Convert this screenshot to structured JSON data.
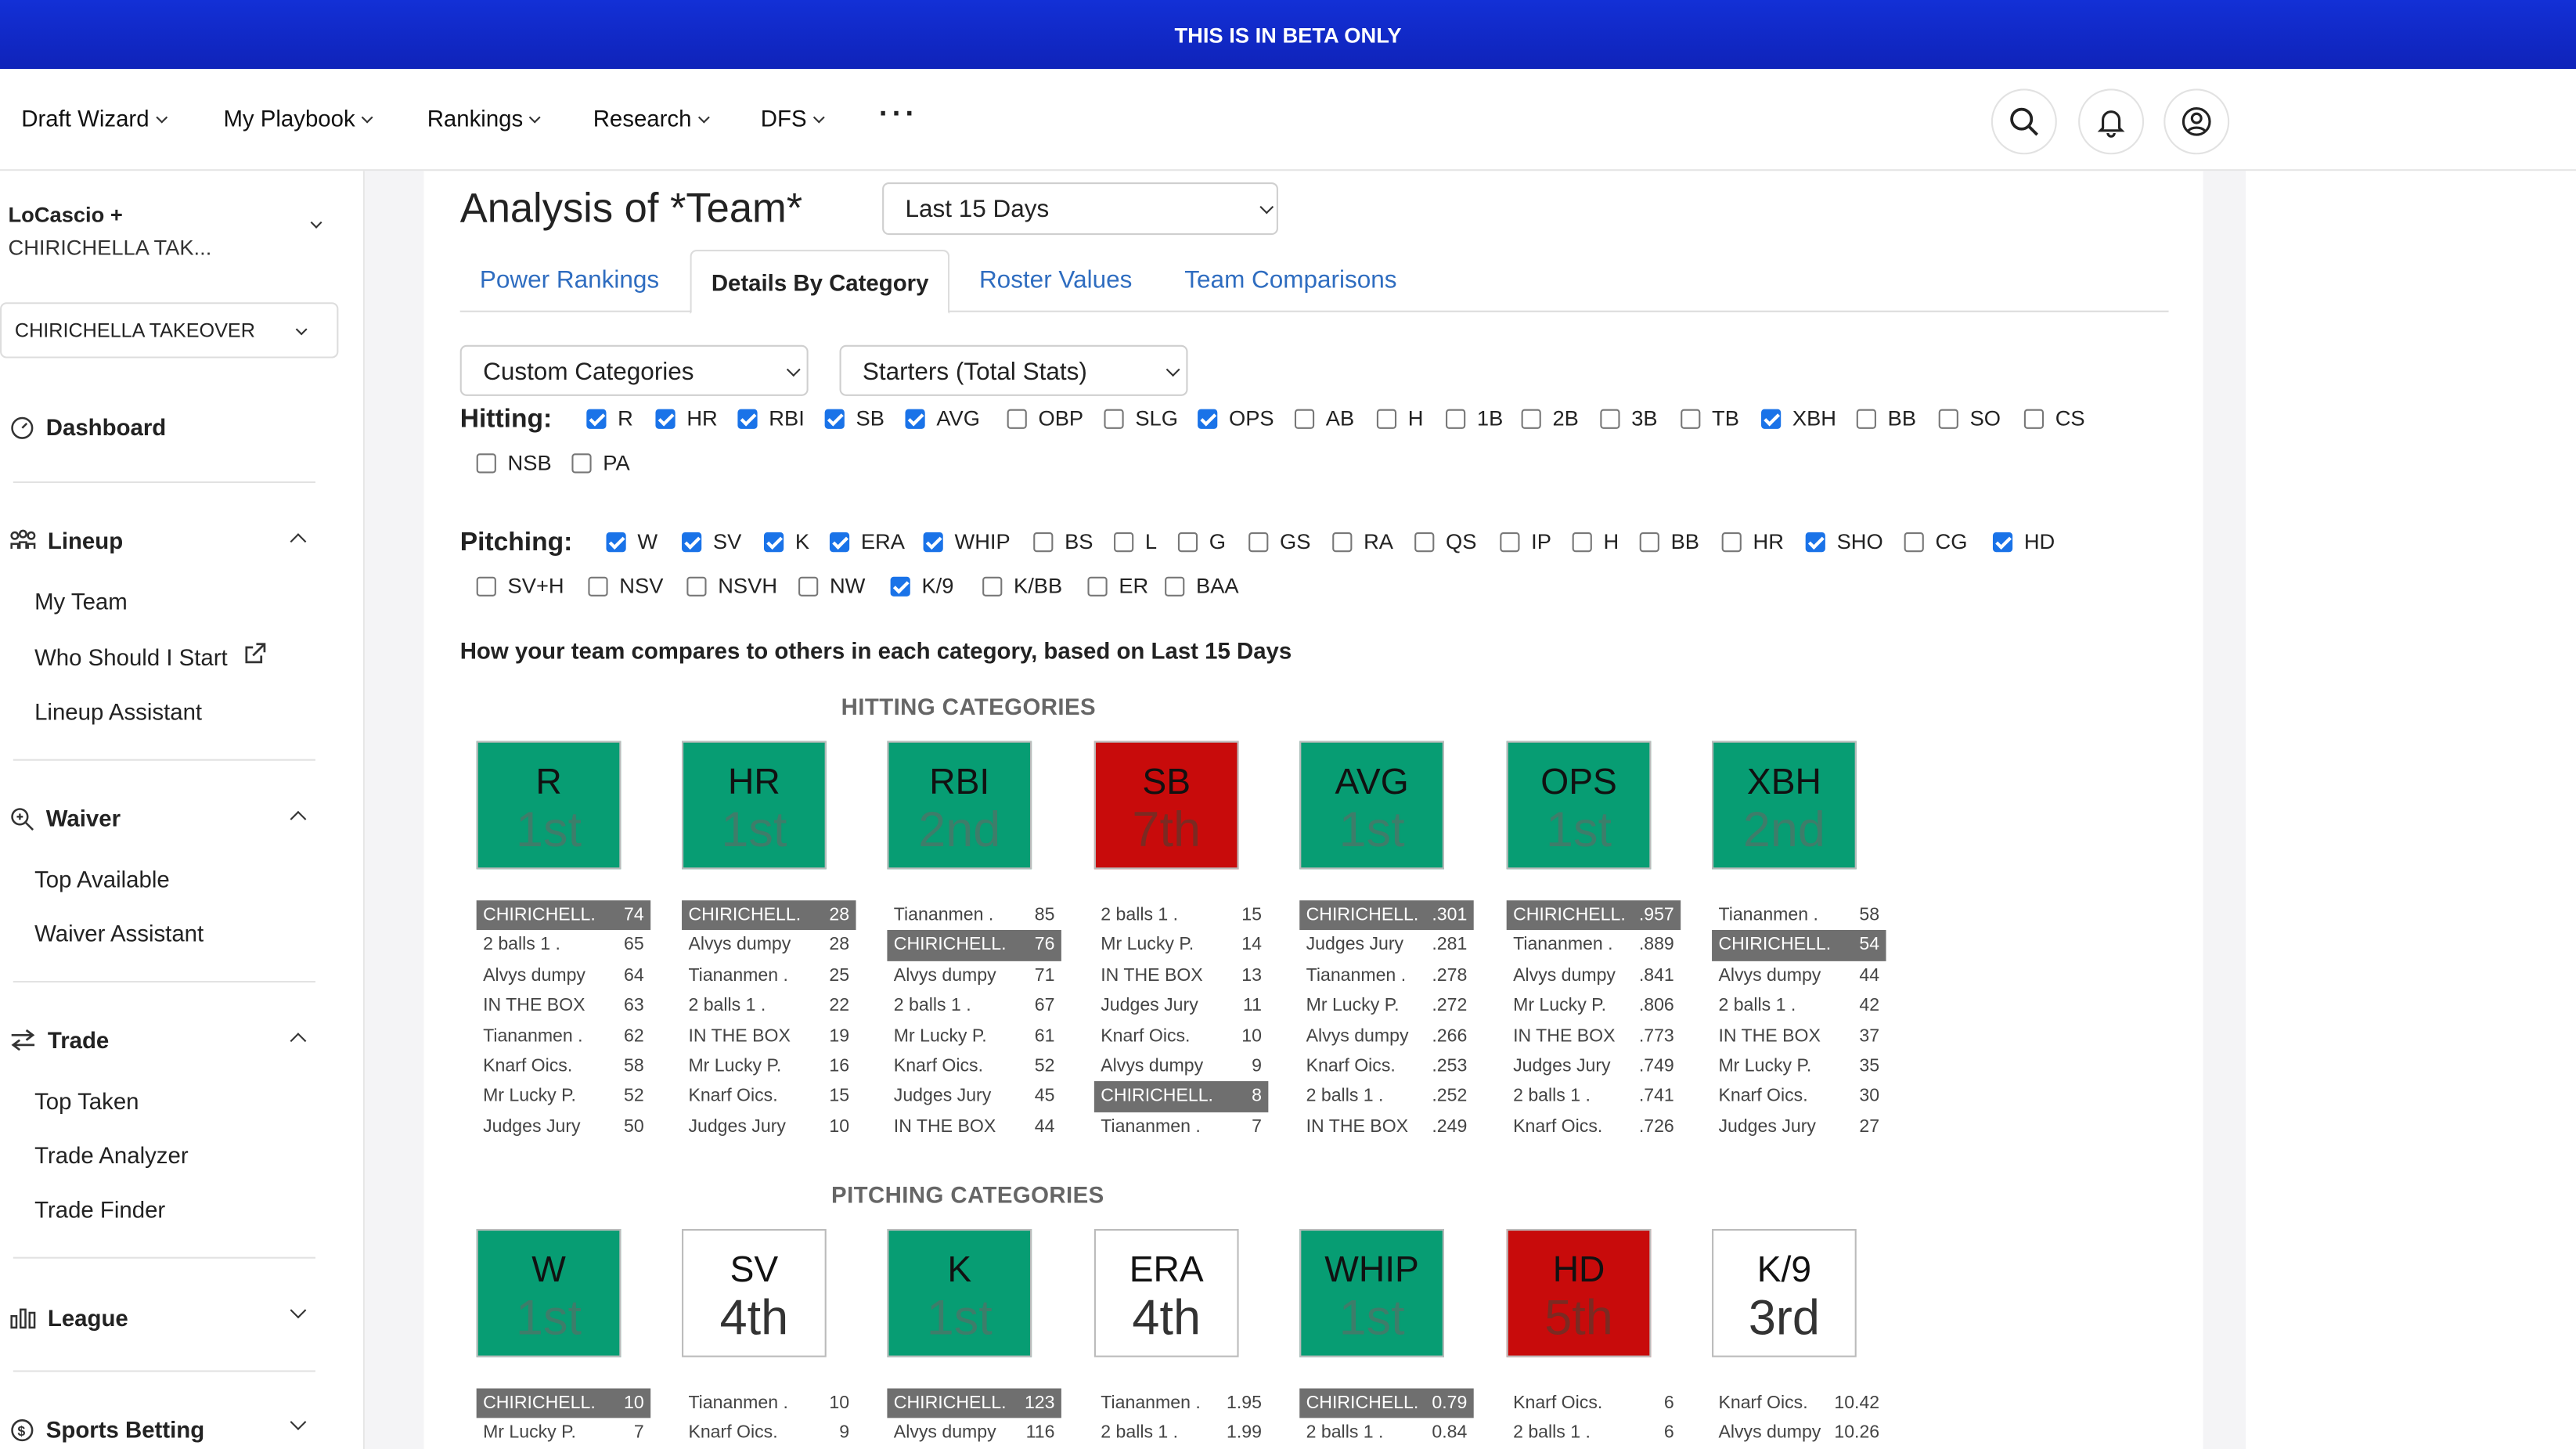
{
  "banner": "THIS IS IN BETA ONLY",
  "nav": [
    "Draft Wizard",
    "My Playbook",
    "Rankings",
    "Research",
    "DFS"
  ],
  "sidebar": {
    "league_line1": "LoCascio +",
    "league_line2": "CHIRICHELLA TAK...",
    "team": "CHIRICHELLA TAKEOVER",
    "dashboard": "Dashboard",
    "lineup": "Lineup",
    "lineup_items": [
      "My Team",
      "Who Should I Start",
      "Lineup Assistant"
    ],
    "waiver": "Waiver",
    "waiver_items": [
      "Top Available",
      "Waiver Assistant"
    ],
    "trade": "Trade",
    "trade_items": [
      "Top Taken",
      "Trade Analyzer",
      "Trade Finder"
    ],
    "league": "League",
    "betting": "Sports Betting"
  },
  "main": {
    "title": "Analysis of *Team*",
    "period": "Last 15 Days",
    "tabs": [
      "Power Rankings",
      "Details By Category",
      "Roster Values",
      "Team Comparisons"
    ],
    "active_tab": "Details By Category",
    "category_select": "Custom Categories",
    "stats_select": "Starters (Total Stats)",
    "hitting_label": "Hitting:",
    "pitching_label": "Pitching:",
    "summary": "How your team compares to others in each category, based on Last 15 Days",
    "hitting_heading": "HITTING CATEGORIES",
    "pitching_heading": "PITCHING CATEGORIES"
  },
  "hitting_checks": [
    {
      "l": "R",
      "on": true
    },
    {
      "l": "HR",
      "on": true
    },
    {
      "l": "RBI",
      "on": true
    },
    {
      "l": "SB",
      "on": true
    },
    {
      "l": "AVG",
      "on": true
    },
    {
      "l": "OBP",
      "on": false
    },
    {
      "l": "SLG",
      "on": false
    },
    {
      "l": "OPS",
      "on": true
    },
    {
      "l": "AB",
      "on": false
    },
    {
      "l": "H",
      "on": false
    },
    {
      "l": "1B",
      "on": false
    },
    {
      "l": "2B",
      "on": false
    },
    {
      "l": "3B",
      "on": false
    },
    {
      "l": "TB",
      "on": false
    },
    {
      "l": "XBH",
      "on": true
    },
    {
      "l": "BB",
      "on": false
    },
    {
      "l": "SO",
      "on": false
    },
    {
      "l": "CS",
      "on": false
    },
    {
      "l": "NSB",
      "on": false
    },
    {
      "l": "PA",
      "on": false
    }
  ],
  "pitching_checks": [
    {
      "l": "W",
      "on": true
    },
    {
      "l": "SV",
      "on": true
    },
    {
      "l": "K",
      "on": true
    },
    {
      "l": "ERA",
      "on": true
    },
    {
      "l": "WHIP",
      "on": true
    },
    {
      "l": "BS",
      "on": false
    },
    {
      "l": "L",
      "on": false
    },
    {
      "l": "G",
      "on": false
    },
    {
      "l": "GS",
      "on": false
    },
    {
      "l": "RA",
      "on": false
    },
    {
      "l": "QS",
      "on": false
    },
    {
      "l": "IP",
      "on": false
    },
    {
      "l": "H",
      "on": false
    },
    {
      "l": "BB",
      "on": false
    },
    {
      "l": "HR",
      "on": false
    },
    {
      "l": "SHO",
      "on": true
    },
    {
      "l": "CG",
      "on": false
    },
    {
      "l": "HD",
      "on": true
    },
    {
      "l": "SV+H",
      "on": false
    },
    {
      "l": "NSV",
      "on": false
    },
    {
      "l": "NSVH",
      "on": false
    },
    {
      "l": "NW",
      "on": false
    },
    {
      "l": "K/9",
      "on": true
    },
    {
      "l": "K/BB",
      "on": false
    },
    {
      "l": "ER",
      "on": false
    },
    {
      "l": "BAA",
      "on": false
    }
  ],
  "hitting_cats": [
    {
      "name": "R",
      "rank": "1st",
      "color": "green",
      "rows": [
        [
          "CHIRICHELL.",
          "74",
          true
        ],
        [
          "2 balls 1 .",
          "65"
        ],
        [
          "Alvys dumpy",
          "64"
        ],
        [
          "IN THE BOX",
          "63"
        ],
        [
          "Tiananmen .",
          "62"
        ],
        [
          "Knarf Oics.",
          "58"
        ],
        [
          "Mr Lucky P.",
          "52"
        ],
        [
          "Judges Jury",
          "50"
        ]
      ]
    },
    {
      "name": "HR",
      "rank": "1st",
      "color": "green",
      "rows": [
        [
          "CHIRICHELL.",
          "28",
          true
        ],
        [
          "Alvys dumpy",
          "28"
        ],
        [
          "Tiananmen .",
          "25"
        ],
        [
          "2 balls 1 .",
          "22"
        ],
        [
          "IN THE BOX",
          "19"
        ],
        [
          "Mr Lucky P.",
          "16"
        ],
        [
          "Knarf Oics.",
          "15"
        ],
        [
          "Judges Jury",
          "10"
        ]
      ]
    },
    {
      "name": "RBI",
      "rank": "2nd",
      "color": "green",
      "rows": [
        [
          "Tiananmen .",
          "85"
        ],
        [
          "CHIRICHELL.",
          "76",
          true
        ],
        [
          "Alvys dumpy",
          "71"
        ],
        [
          "2 balls 1 .",
          "67"
        ],
        [
          "Mr Lucky P.",
          "61"
        ],
        [
          "Knarf Oics.",
          "52"
        ],
        [
          "Judges Jury",
          "45"
        ],
        [
          "IN THE BOX",
          "44"
        ]
      ]
    },
    {
      "name": "SB",
      "rank": "7th",
      "color": "red",
      "rows": [
        [
          "2 balls 1 .",
          "15"
        ],
        [
          "Mr Lucky P.",
          "14"
        ],
        [
          "IN THE BOX",
          "13"
        ],
        [
          "Judges Jury",
          "11"
        ],
        [
          "Knarf Oics.",
          "10"
        ],
        [
          "Alvys dumpy",
          "9"
        ],
        [
          "CHIRICHELL.",
          "8",
          true
        ],
        [
          "Tiananmen .",
          "7"
        ]
      ]
    },
    {
      "name": "AVG",
      "rank": "1st",
      "color": "green",
      "rows": [
        [
          "CHIRICHELL.",
          ".301",
          true
        ],
        [
          "Judges Jury",
          ".281"
        ],
        [
          "Tiananmen .",
          ".278"
        ],
        [
          "Mr Lucky P.",
          ".272"
        ],
        [
          "Alvys dumpy",
          ".266"
        ],
        [
          "Knarf Oics.",
          ".253"
        ],
        [
          "2 balls 1 .",
          ".252"
        ],
        [
          "IN THE BOX",
          ".249"
        ]
      ]
    },
    {
      "name": "OPS",
      "rank": "1st",
      "color": "green",
      "rows": [
        [
          "CHIRICHELL.",
          ".957",
          true
        ],
        [
          "Tiananmen .",
          ".889"
        ],
        [
          "Alvys dumpy",
          ".841"
        ],
        [
          "Mr Lucky P.",
          ".806"
        ],
        [
          "IN THE BOX",
          ".773"
        ],
        [
          "Judges Jury",
          ".749"
        ],
        [
          "2 balls 1 .",
          ".741"
        ],
        [
          "Knarf Oics.",
          ".726"
        ]
      ]
    },
    {
      "name": "XBH",
      "rank": "2nd",
      "color": "green",
      "rows": [
        [
          "Tiananmen .",
          "58"
        ],
        [
          "CHIRICHELL.",
          "54",
          true
        ],
        [
          "Alvys dumpy",
          "44"
        ],
        [
          "2 balls 1 .",
          "42"
        ],
        [
          "IN THE BOX",
          "37"
        ],
        [
          "Mr Lucky P.",
          "35"
        ],
        [
          "Knarf Oics.",
          "30"
        ],
        [
          "Judges Jury",
          "27"
        ]
      ]
    }
  ],
  "pitching_cats": [
    {
      "name": "W",
      "rank": "1st",
      "color": "green",
      "rows": [
        [
          "CHIRICHELL.",
          "10",
          true
        ],
        [
          "Mr Lucky P.",
          "7"
        ]
      ]
    },
    {
      "name": "SV",
      "rank": "4th",
      "color": "white",
      "rows": [
        [
          "Tiananmen .",
          "10"
        ],
        [
          "Knarf Oics.",
          "9"
        ]
      ]
    },
    {
      "name": "K",
      "rank": "1st",
      "color": "green",
      "rows": [
        [
          "CHIRICHELL.",
          "123",
          true
        ],
        [
          "Alvys dumpy",
          "116"
        ]
      ]
    },
    {
      "name": "ERA",
      "rank": "4th",
      "color": "white",
      "rows": [
        [
          "Tiananmen .",
          "1.95"
        ],
        [
          "2 balls 1 .",
          "1.99"
        ]
      ]
    },
    {
      "name": "WHIP",
      "rank": "1st",
      "color": "green",
      "rows": [
        [
          "CHIRICHELL.",
          "0.79",
          true
        ],
        [
          "2 balls 1 .",
          "0.84"
        ]
      ]
    },
    {
      "name": "HD",
      "rank": "5th",
      "color": "red",
      "rows": [
        [
          "Knarf Oics.",
          "6"
        ],
        [
          "2 balls 1 .",
          "6"
        ]
      ]
    },
    {
      "name": "K/9",
      "rank": "3rd",
      "color": "white",
      "rows": [
        [
          "Knarf Oics.",
          "10.42"
        ],
        [
          "Alvys dumpy",
          "10.26"
        ]
      ]
    }
  ]
}
